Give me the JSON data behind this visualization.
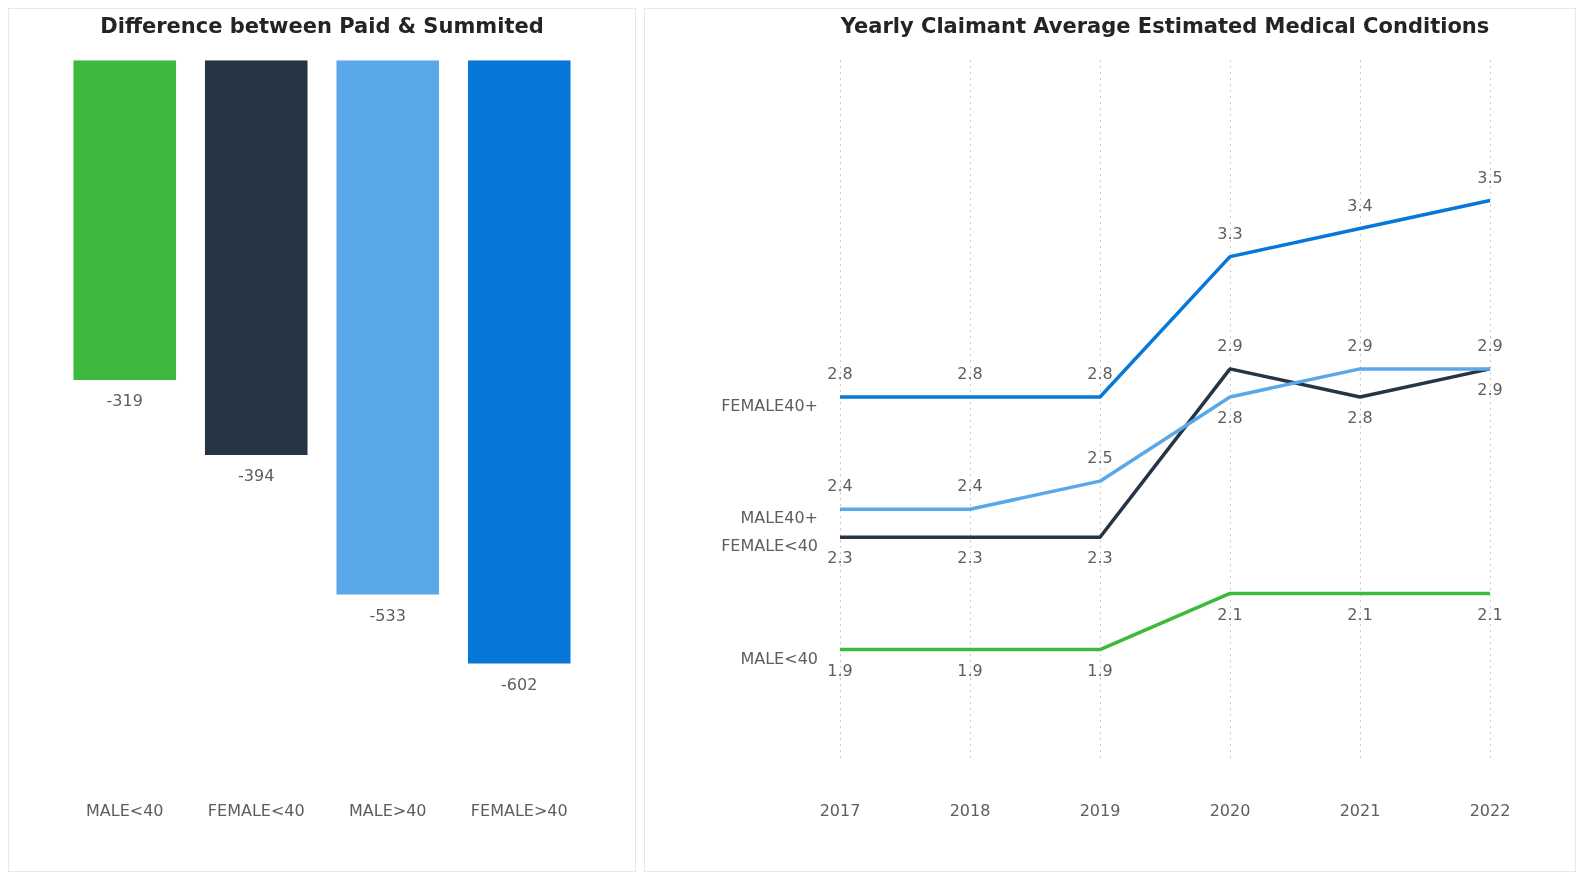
{
  "chart_data": [
    {
      "type": "bar",
      "title": "Difference between Paid & Summited",
      "categories": [
        "MALE<40",
        "FEMALE<40",
        "MALE>40",
        "FEMALE>40"
      ],
      "values": [
        -319,
        -394,
        -533,
        -602
      ],
      "colors": [
        "#3dba3d",
        "#253545",
        "#5aa8e8",
        "#0878d8"
      ],
      "data_labels": true,
      "grid": false,
      "legend": false,
      "tick_labels": "x"
    },
    {
      "type": "line",
      "title": "Yearly Claimant Average Estimated Medical Conditions",
      "categories": [
        "2017",
        "2018",
        "2019",
        "2020",
        "2021",
        "2022"
      ],
      "series": [
        {
          "name": "FEMALE40+",
          "color": "#0878d8",
          "values": [
            2.8,
            2.8,
            2.8,
            3.3,
            3.4,
            3.5
          ]
        },
        {
          "name": "MALE40+",
          "color": "#5aa8e8",
          "values": [
            2.4,
            2.4,
            2.5,
            2.8,
            2.9,
            2.9
          ]
        },
        {
          "name": "FEMALE<40",
          "color": "#253545",
          "values": [
            2.3,
            2.3,
            2.3,
            2.9,
            2.8,
            2.9
          ]
        },
        {
          "name": "MALE<40",
          "color": "#3dba3d",
          "values": [
            1.9,
            1.9,
            1.9,
            2.1,
            2.1,
            2.1
          ]
        }
      ],
      "data_labels": true,
      "grid": "x",
      "legend": false,
      "marker": "none",
      "line_style": "solid",
      "tick_labels": "x"
    }
  ]
}
